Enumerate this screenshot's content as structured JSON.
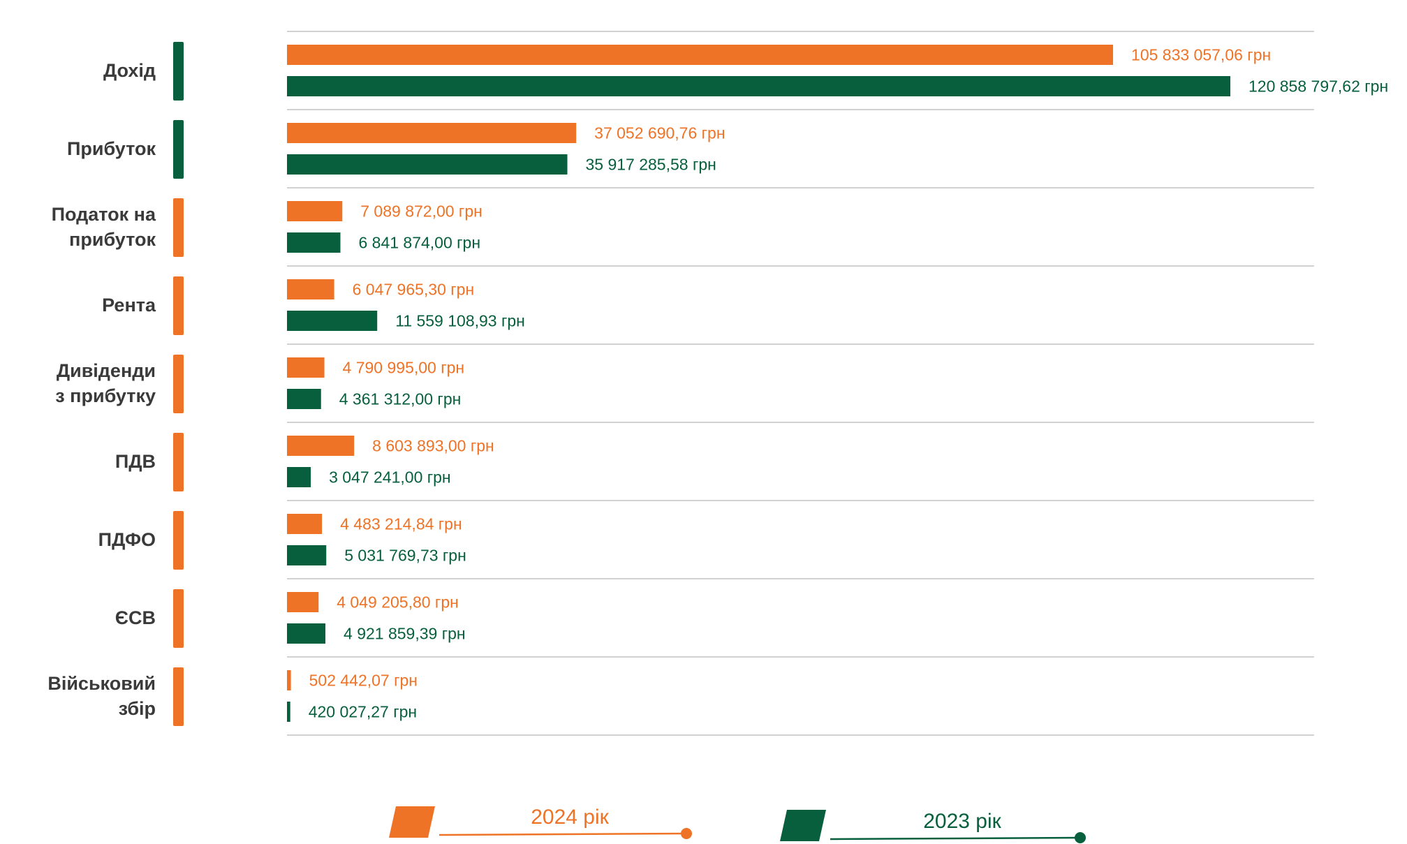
{
  "colors": {
    "series_2024": "#ee7326",
    "series_2023": "#075f3d",
    "label_text": "#3a3a3a",
    "separator": "#d2d2d2"
  },
  "chart_data": {
    "type": "bar",
    "orientation": "horizontal",
    "value_unit": "грн",
    "xlim": [
      0,
      120858797.62
    ],
    "grid": false,
    "legend_position": "bottom",
    "categories": [
      {
        "lines": [
          "Дохід"
        ],
        "accent": "series_2023"
      },
      {
        "lines": [
          "Прибуток"
        ],
        "accent": "series_2023"
      },
      {
        "lines": [
          "Податок на",
          "прибуток"
        ],
        "accent": "series_2024"
      },
      {
        "lines": [
          "Рента"
        ],
        "accent": "series_2024"
      },
      {
        "lines": [
          "Дивіденди",
          "з прибутку"
        ],
        "accent": "series_2024"
      },
      {
        "lines": [
          "ПДВ"
        ],
        "accent": "series_2024"
      },
      {
        "lines": [
          "ПДФО"
        ],
        "accent": "series_2024"
      },
      {
        "lines": [
          "ЄСВ"
        ],
        "accent": "series_2024"
      },
      {
        "lines": [
          "Військовий",
          "збір"
        ],
        "accent": "series_2024"
      }
    ],
    "series": [
      {
        "name": "2024 рік",
        "color_key": "series_2024",
        "values": [
          105833057.06,
          37052690.76,
          7089872.0,
          6047965.3,
          4790995.0,
          8603893.0,
          4483214.84,
          4049205.8,
          502442.07
        ],
        "labels": [
          "105 833 057,06 грн",
          "37 052 690,76 грн",
          "7 089 872,00 грн",
          "6 047 965,30 грн",
          "4 790 995,00 грн",
          "8 603 893,00 грн",
          "4 483 214,84 грн",
          "4 049 205,80 грн",
          "502 442,07 грн"
        ]
      },
      {
        "name": "2023 рік",
        "color_key": "series_2023",
        "values": [
          120858797.62,
          35917285.58,
          6841874.0,
          11559108.93,
          4361312.0,
          3047241.0,
          5031769.73,
          4921859.39,
          420027.27
        ],
        "labels": [
          "120 858 797,62 грн",
          "35 917 285,58 грн",
          "6 841 874,00 грн",
          "11 559 108,93 грн",
          "4 361 312,00 грн",
          "3 047 241,00 грн",
          "5 031 769,73 грн",
          "4 921 859,39 грн",
          "420 027,27 грн"
        ]
      }
    ]
  }
}
